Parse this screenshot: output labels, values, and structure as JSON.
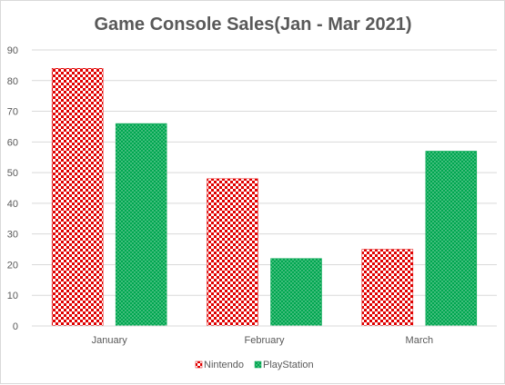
{
  "chart_data": {
    "type": "bar",
    "title": "Game Console Sales(Jan - Mar 2021)",
    "xlabel": "",
    "ylabel": "",
    "categories": [
      "January",
      "February",
      "March"
    ],
    "series": [
      {
        "name": "Nintendo",
        "values": [
          84,
          48,
          25
        ],
        "color": "#e00000",
        "pattern": "checkerboard"
      },
      {
        "name": "PlayStation",
        "values": [
          66,
          22,
          57
        ],
        "color": "#00a650",
        "pattern": "dotted"
      }
    ],
    "ylim": [
      0,
      90
    ],
    "yticks": [
      "0",
      "10",
      "20",
      "30",
      "40",
      "50",
      "60",
      "70",
      "80",
      "90"
    ],
    "grid": true,
    "legend_position": "bottom"
  }
}
